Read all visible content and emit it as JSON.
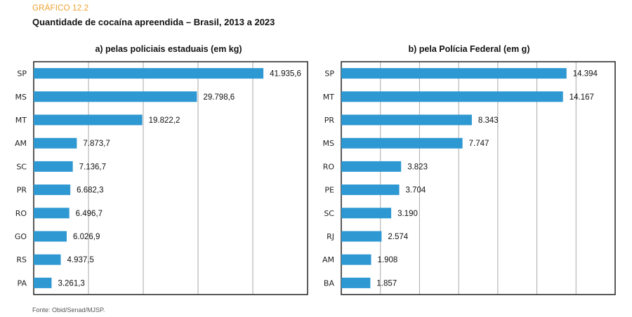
{
  "header": {
    "tag": "GRÁFICO 12.2",
    "title": "Quantidade de cocaína apreendida – Brasil, 2013 a 2023"
  },
  "source": "Fonte: Obid/Senad/MJSP.",
  "colors": {
    "bar": "#2e98d2",
    "grid": "#aaaaaa",
    "frame": "#222222",
    "tag": "#f0a030"
  },
  "chart_data": [
    {
      "type": "bar",
      "orientation": "horizontal",
      "title": "a) pelas policiais estaduais (em kg)",
      "categories": [
        "SP",
        "MS",
        "MT",
        "AM",
        "SC",
        "PR",
        "RO",
        "GO",
        "RS",
        "PA"
      ],
      "values": [
        41935.6,
        29798.6,
        19822.2,
        7873.7,
        7136.7,
        6682.3,
        6496.7,
        6026.9,
        4937.5,
        3261.3
      ],
      "value_labels": [
        "41.935,6",
        "29.798,6",
        "19.822,2",
        "7.873,7",
        "7.136,7",
        "6.682,3",
        "6.496,7",
        "6.026,9",
        "4.937,5",
        "3.261,3"
      ],
      "xlim": [
        0,
        50000
      ],
      "x_gridlines": [
        10000,
        20000,
        30000,
        40000
      ],
      "grid": true
    },
    {
      "type": "bar",
      "orientation": "horizontal",
      "title": "b) pela Polícia Federal (em g)",
      "categories": [
        "SP",
        "MT",
        "PR",
        "MS",
        "RO",
        "PE",
        "SC",
        "RJ",
        "AM",
        "BA"
      ],
      "values": [
        14394,
        14167,
        8343,
        7747,
        3823,
        3704,
        3190,
        2574,
        1908,
        1857
      ],
      "value_labels": [
        "14.394",
        "14.167",
        "8.343",
        "7.747",
        "3.823",
        "3.704",
        "3.190",
        "2.574",
        "1.908",
        "1.857"
      ],
      "xlim": [
        0,
        17500
      ],
      "x_gridlines": [
        2500,
        5000,
        7500,
        10000,
        12500,
        15000
      ],
      "grid": true
    }
  ]
}
